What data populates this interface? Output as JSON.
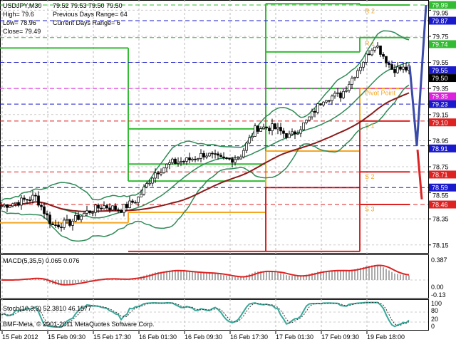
{
  "header": {
    "symbol": "USDJPY,M30",
    "ohlc": "79.52 79.53 79.50 79.50",
    "high": "High= 79.6",
    "low": "Low= 78.96",
    "close": "Close= 79.49",
    "prev_range": "Previous Days Range= 64",
    "curr_range": "Current Days Range= 6"
  },
  "macd": {
    "label": "MACD(5,35,5) 0.065 0.076",
    "ticks": [
      "0.387",
      "0.00",
      "-0.13"
    ]
  },
  "stoch": {
    "label": "Stoch(10,3,3) 52.3810 46.1577",
    "ticks": [
      "100",
      "80",
      "20",
      "0"
    ]
  },
  "copyright": "BMF-Meta, © 2001-2011 MetaQuotes Software Corp.",
  "colors": {
    "bg": "#ffffff",
    "green": "#33bb33",
    "blue": "#1a1acc",
    "red": "#dd2222",
    "magenta": "#dd22dd",
    "orange": "#f5a623",
    "bands": "#2e8b57",
    "ma": "#8b1a1a",
    "arrow_blue": "#3a4aa8"
  },
  "chart_data": {
    "type": "candlestick",
    "symbol": "USDJPY",
    "timeframe": "M30",
    "x_tick_labels": [
      "15 Feb 2012",
      "15 Feb 09:30",
      "15 Feb 17:30",
      "16 Feb 01:30",
      "16 Feb 09:30",
      "16 Feb 17:30",
      "17 Feb 01:30",
      "17 Feb 09:30",
      "19 Feb 18:00"
    ],
    "y_tick_labels": [
      "79.95",
      "79.75",
      "79.55",
      "79.35",
      "79.15",
      "78.95",
      "78.75",
      "78.55",
      "78.35",
      "78.15"
    ],
    "ylim": [
      78.05,
      80.02
    ],
    "approx_close_path": [
      78.45,
      78.48,
      78.52,
      78.3,
      78.32,
      78.4,
      78.45,
      78.42,
      78.5,
      78.7,
      78.78,
      78.8,
      78.85,
      78.8,
      78.82,
      79.05,
      79.05,
      78.98,
      79.1,
      79.28,
      79.3,
      79.5,
      79.7,
      79.5,
      79.5
    ],
    "price_labels": [
      {
        "value": "79.99",
        "color": "#33bb33"
      },
      {
        "value": "79.87",
        "color": "#1a1acc"
      },
      {
        "value": "79.74",
        "color": "#33bb33"
      },
      {
        "value": "79.55",
        "color": "#1a1acc"
      },
      {
        "value": "79.50",
        "color": "#000000"
      },
      {
        "value": "79.35",
        "color": "#dd22dd"
      },
      {
        "value": "79.23",
        "color": "#1a1acc"
      },
      {
        "value": "79.10",
        "color": "#dd2222"
      },
      {
        "value": "78.91",
        "color": "#1a1acc"
      },
      {
        "value": "78.71",
        "color": "#dd2222"
      },
      {
        "value": "78.59",
        "color": "#1a1acc"
      },
      {
        "value": "78.46",
        "color": "#dd2222"
      }
    ],
    "pivot_labels": [
      {
        "text": "R 2",
        "price": 79.95
      },
      {
        "text": "R 1",
        "price": 79.7
      },
      {
        "text": "Pivot Point",
        "price": 79.32
      },
      {
        "text": "S 1",
        "price": 79.07
      },
      {
        "text": "S 2",
        "price": 78.68
      },
      {
        "text": "S 3",
        "price": 78.43
      }
    ],
    "day_levels": [
      {
        "day": "15 Feb",
        "green": [
          79.66
        ],
        "orange": [
          78.32
        ],
        "red": []
      },
      {
        "day": "16 Feb",
        "green": [
          79.04,
          78.77,
          78.64
        ],
        "orange": [
          78.4
        ],
        "red": [
          78.1
        ]
      },
      {
        "day": "17 Feb",
        "green": [
          80.0,
          79.63,
          79.35
        ],
        "orange": [
          78.87
        ],
        "red": [
          78.59,
          78.1
        ]
      },
      {
        "day": "19 Feb",
        "green": [
          79.99,
          79.74
        ],
        "orange": [
          79.35
        ],
        "red": [
          79.1,
          78.71,
          78.46
        ]
      }
    ],
    "forecast_blue": [
      79.52,
      78.91,
      79.99
    ],
    "forecast_red": [
      78.88,
      78.5
    ]
  }
}
